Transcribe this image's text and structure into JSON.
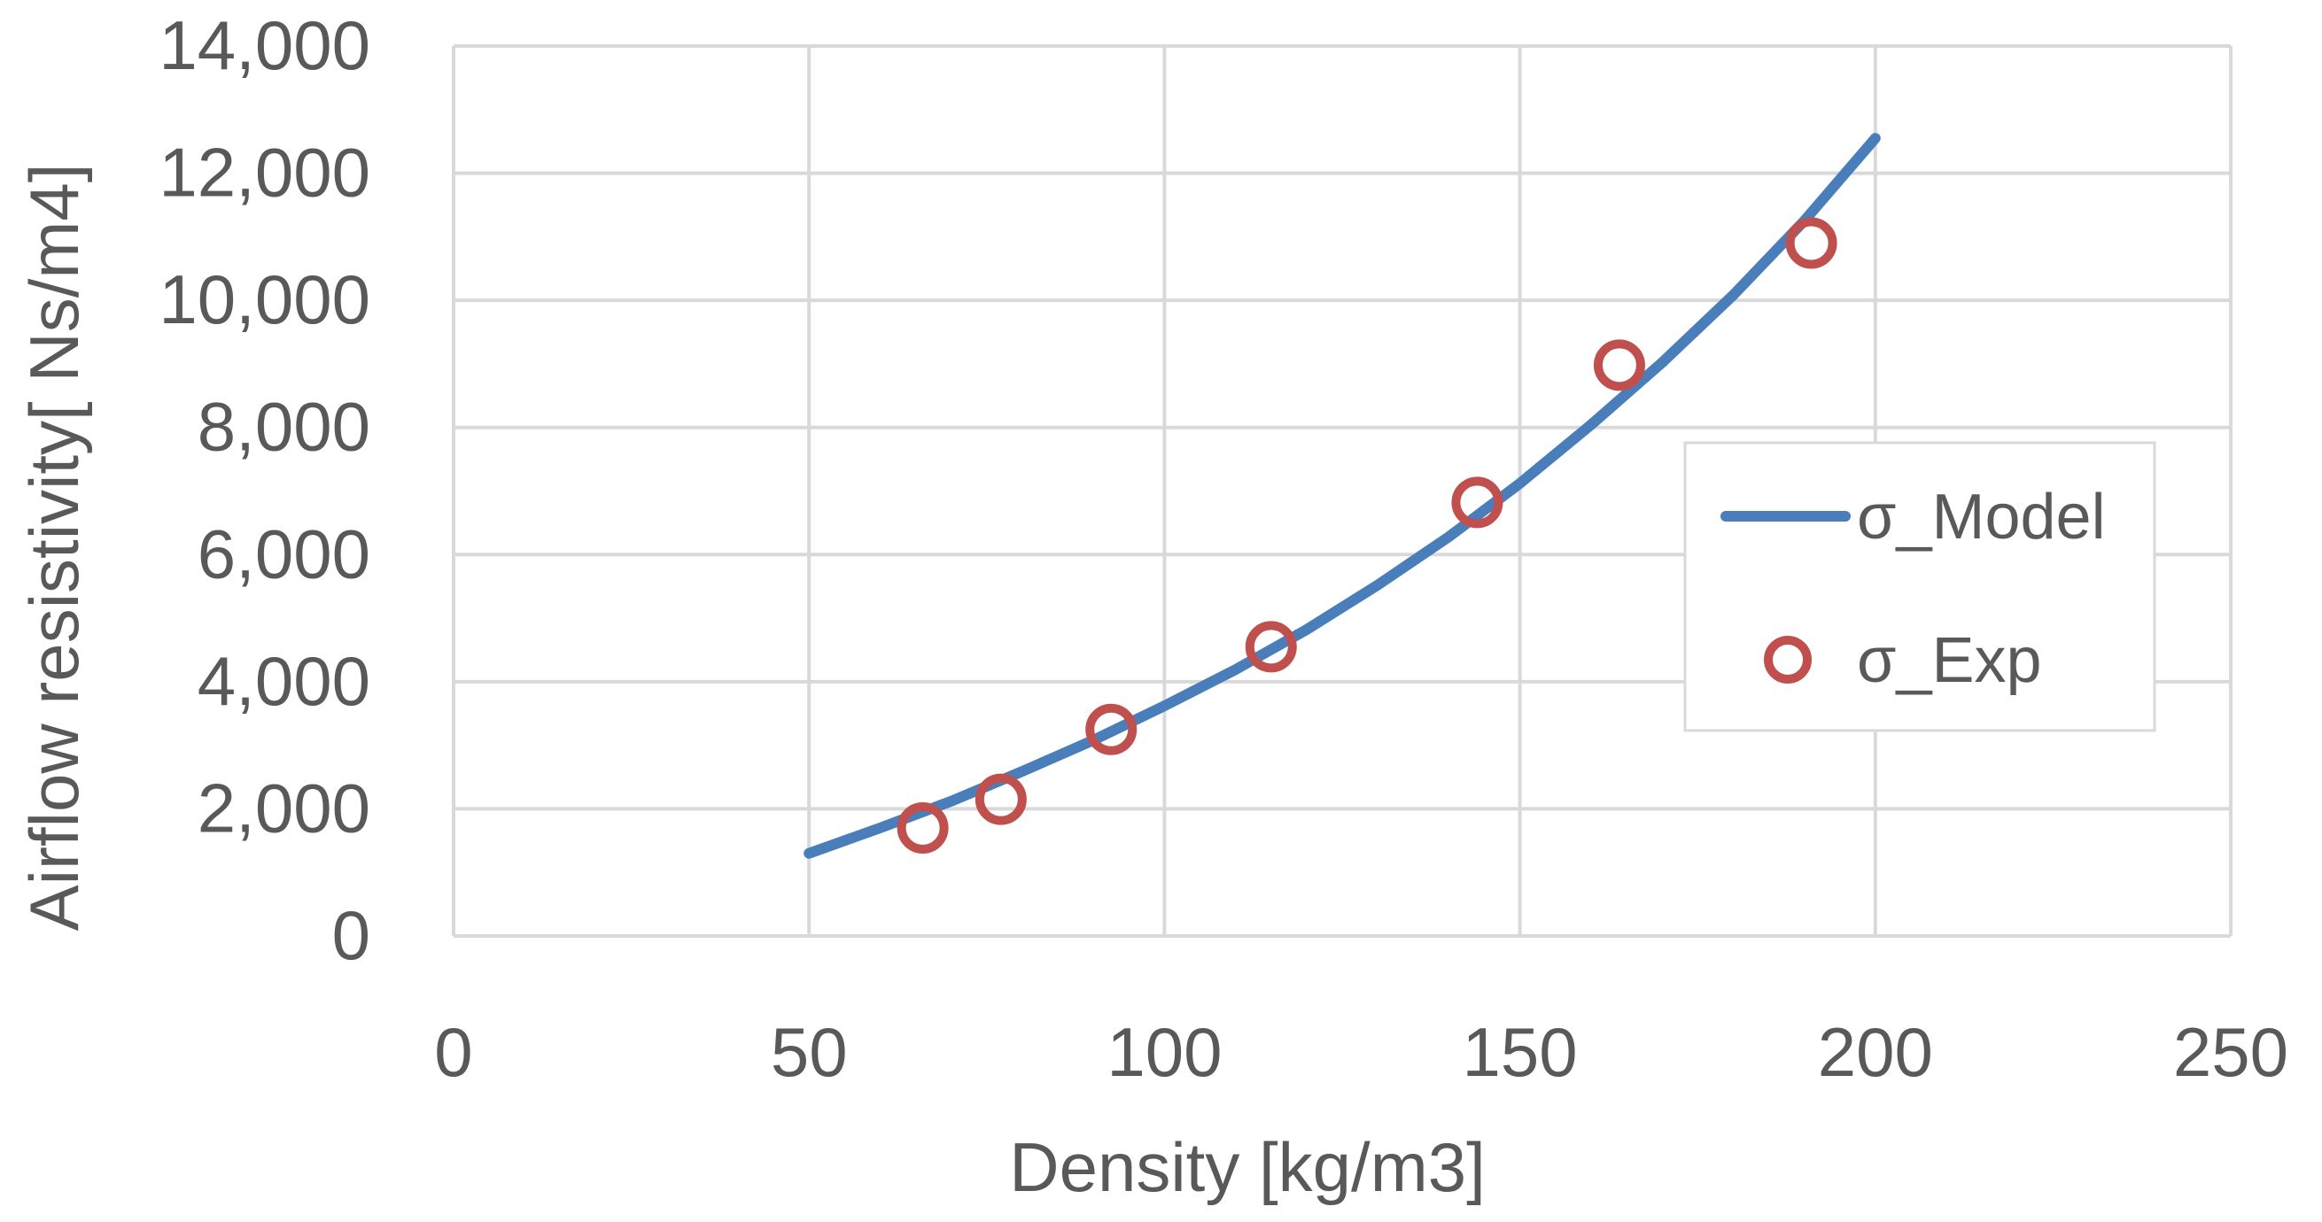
{
  "chart_data": {
    "type": "scatter",
    "title": "",
    "xlabel": "Density [kg/m3]",
    "ylabel": "Airflow resistivity[ Ns/m4]",
    "xlim": [
      0,
      250
    ],
    "ylim": [
      0,
      14000
    ],
    "x_ticks": [
      0,
      50,
      100,
      150,
      200,
      250
    ],
    "y_ticks": [
      0,
      2000,
      4000,
      6000,
      8000,
      10000,
      12000,
      14000
    ],
    "x_tick_labels": [
      "0",
      "50",
      "100",
      "150",
      "200",
      "250"
    ],
    "y_tick_labels": [
      "0",
      "2,000",
      "4,000",
      "6,000",
      "8,000",
      "10,000",
      "12,000",
      "14,000"
    ],
    "grid": true,
    "legend_position": "right",
    "series": [
      {
        "name": "σ_Model",
        "kind": "line",
        "color": "#4a7ebb",
        "x": [
          50,
          60,
          70,
          80,
          90,
          100,
          110,
          120,
          130,
          140,
          150,
          160,
          170,
          180,
          190,
          200
        ],
        "y": [
          1300,
          1700,
          2120,
          2590,
          3080,
          3620,
          4190,
          4820,
          5520,
          6280,
          7120,
          8040,
          9020,
          10080,
          11250,
          12550
        ]
      },
      {
        "name": "σ_Exp",
        "kind": "scatter",
        "color": "#c0504d",
        "x": [
          66,
          77,
          92.5,
          115,
          144,
          164,
          191
        ],
        "y": [
          1700,
          2150,
          3250,
          4550,
          6820,
          8980,
          10900
        ]
      }
    ]
  }
}
